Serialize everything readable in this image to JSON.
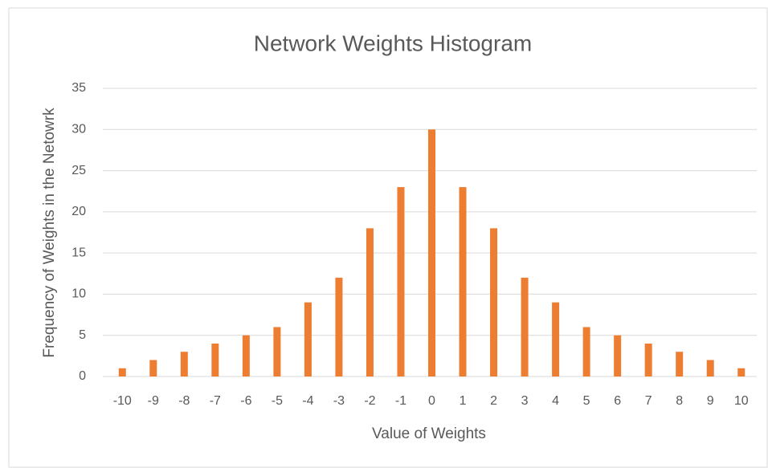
{
  "chart_data": {
    "type": "bar",
    "title": "Network Weights Histogram",
    "x_label": "Value of Weights",
    "y_label": "Frequency of Weights in the Netowrk",
    "categories": [
      "-10",
      "-9",
      "-8",
      "-7",
      "-6",
      "-5",
      "-4",
      "-3",
      "-2",
      "-1",
      "0",
      "1",
      "2",
      "3",
      "4",
      "5",
      "6",
      "7",
      "8",
      "9",
      "10"
    ],
    "values": [
      1,
      2,
      3,
      4,
      5,
      6,
      9,
      12,
      18,
      23,
      30,
      23,
      18,
      12,
      9,
      6,
      5,
      4,
      3,
      2,
      1
    ],
    "color": "#ed7d31",
    "ylim": [
      0,
      35
    ],
    "yticks": [
      0,
      5,
      10,
      15,
      20,
      25,
      30,
      35
    ],
    "grid": true
  }
}
